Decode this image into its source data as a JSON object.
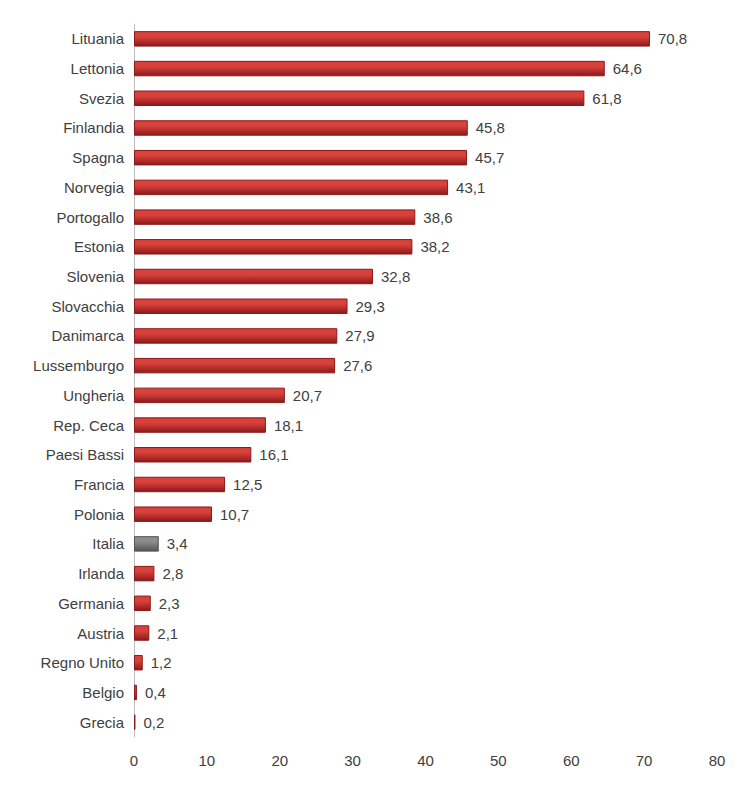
{
  "chart_data": {
    "type": "bar",
    "orientation": "horizontal",
    "categories": [
      "Lituania",
      "Lettonia",
      "Svezia",
      "Finlandia",
      "Spagna",
      "Norvegia",
      "Portogallo",
      "Estonia",
      "Slovenia",
      "Slovacchia",
      "Danimarca",
      "Lussemburgo",
      "Ungheria",
      "Rep. Ceca",
      "Paesi Bassi",
      "Francia",
      "Polonia",
      "Italia",
      "Irlanda",
      "Germania",
      "Austria",
      "Regno Unito",
      "Belgio",
      "Grecia"
    ],
    "values": [
      70.8,
      64.6,
      61.8,
      45.8,
      45.7,
      43.1,
      38.6,
      38.2,
      32.8,
      29.3,
      27.9,
      27.6,
      20.7,
      18.1,
      16.1,
      12.5,
      10.7,
      3.4,
      2.8,
      2.3,
      2.1,
      1.2,
      0.4,
      0.2
    ],
    "value_labels": [
      "70,8",
      "64,6",
      "61,8",
      "45,8",
      "45,7",
      "43,1",
      "38,6",
      "38,2",
      "32,8",
      "29,3",
      "27,9",
      "27,6",
      "20,7",
      "18,1",
      "16,1",
      "12,5",
      "10,7",
      "3,4",
      "2,8",
      "2,3",
      "2,1",
      "1,2",
      "0,4",
      "0,2"
    ],
    "colors": [
      "#d9413b",
      "#d9413b",
      "#d9413b",
      "#d9413b",
      "#d9413b",
      "#d9413b",
      "#d9413b",
      "#d9413b",
      "#d9413b",
      "#d9413b",
      "#d9413b",
      "#d9413b",
      "#d9413b",
      "#d9413b",
      "#d9413b",
      "#d9413b",
      "#d9413b",
      "#8c8c8c",
      "#d9413b",
      "#d9413b",
      "#d9413b",
      "#d9413b",
      "#d9413b",
      "#d9413b"
    ],
    "xlim": [
      0,
      80
    ],
    "xticks": [
      0,
      10,
      20,
      30,
      40,
      50,
      60,
      70,
      80
    ],
    "grid": false,
    "data_labels": true
  }
}
